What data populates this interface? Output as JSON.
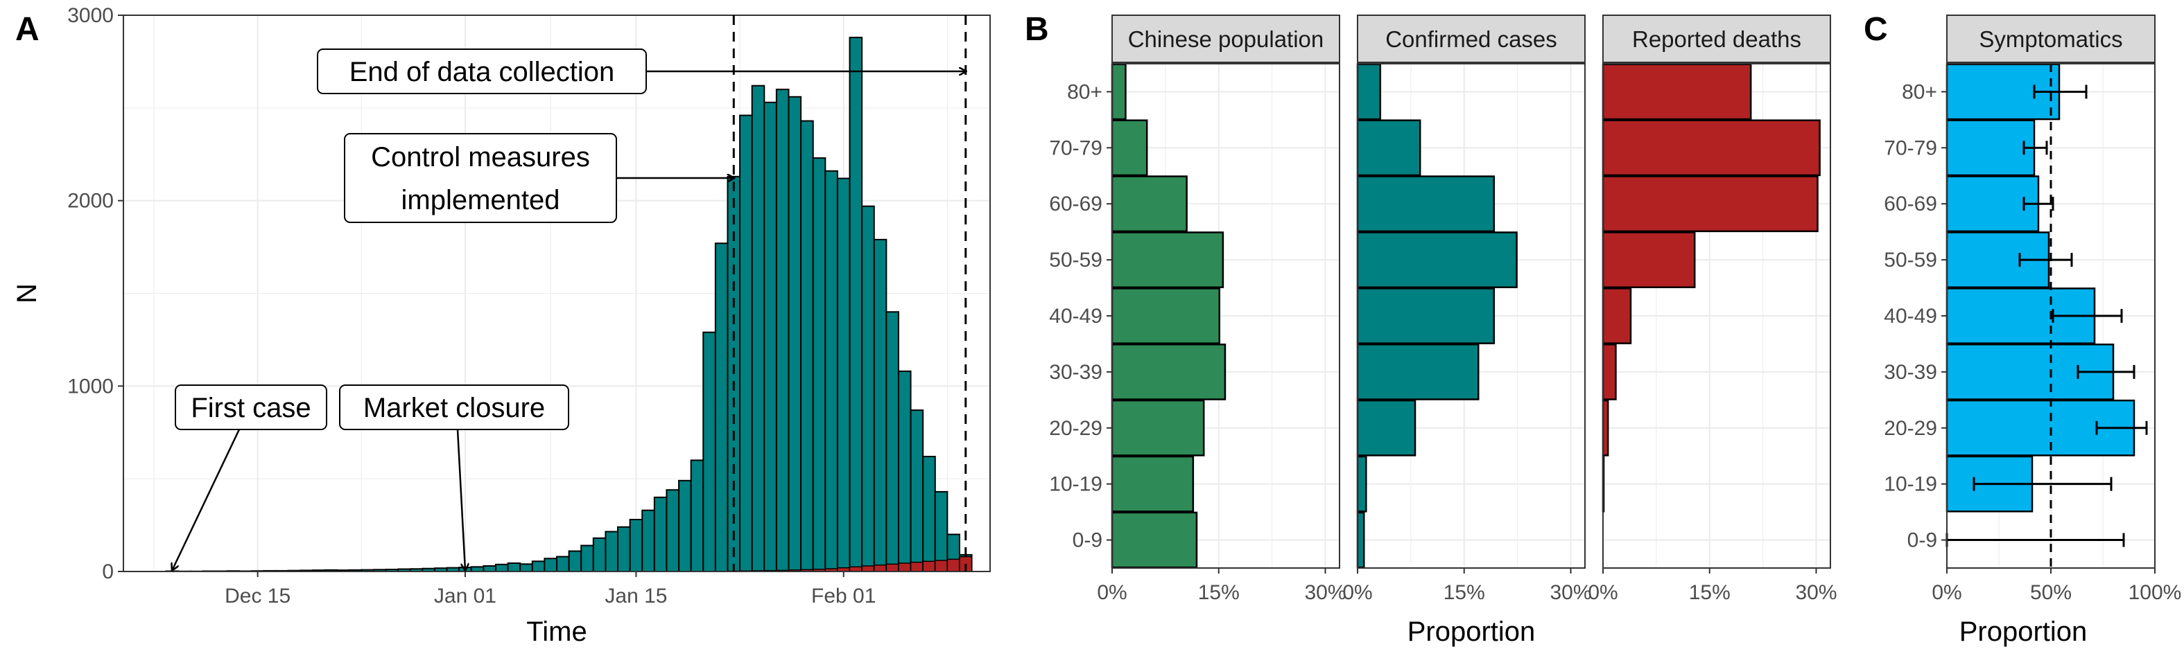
{
  "colors": {
    "cases": "#008080",
    "deaths": "#b22222",
    "population": "#2e8b57",
    "symptomatics": "#00b2ee",
    "grid": "#ebebeb",
    "strip": "#d9d9d9"
  },
  "panel_letters": [
    "A",
    "B",
    "C"
  ],
  "chart_data": [
    {
      "type": "bar",
      "panel": "A",
      "xlabel": "Time",
      "ylabel": "N",
      "ylim": [
        0,
        3000
      ],
      "yticks": [
        0,
        1000,
        2000,
        3000
      ],
      "xlim": [
        "2019-12-04",
        "2020-02-13"
      ],
      "xticks": [
        {
          "date": "2019-12-15",
          "label": "Dec 15"
        },
        {
          "date": "2020-01-01",
          "label": "Jan 01"
        },
        {
          "date": "2020-01-15",
          "label": "Jan 15"
        },
        {
          "date": "2020-02-01",
          "label": "Feb 01"
        }
      ],
      "grid": true,
      "x": [
        "2019-12-08",
        "2019-12-09",
        "2019-12-10",
        "2019-12-11",
        "2019-12-12",
        "2019-12-13",
        "2019-12-14",
        "2019-12-15",
        "2019-12-16",
        "2019-12-17",
        "2019-12-18",
        "2019-12-19",
        "2019-12-20",
        "2019-12-21",
        "2019-12-22",
        "2019-12-23",
        "2019-12-24",
        "2019-12-25",
        "2019-12-26",
        "2019-12-27",
        "2019-12-28",
        "2019-12-29",
        "2019-12-30",
        "2019-12-31",
        "2020-01-01",
        "2020-01-02",
        "2020-01-03",
        "2020-01-04",
        "2020-01-05",
        "2020-01-06",
        "2020-01-07",
        "2020-01-08",
        "2020-01-09",
        "2020-01-10",
        "2020-01-11",
        "2020-01-12",
        "2020-01-13",
        "2020-01-14",
        "2020-01-15",
        "2020-01-16",
        "2020-01-17",
        "2020-01-18",
        "2020-01-19",
        "2020-01-20",
        "2020-01-21",
        "2020-01-22",
        "2020-01-23",
        "2020-01-24",
        "2020-01-25",
        "2020-01-26",
        "2020-01-27",
        "2020-01-28",
        "2020-01-29",
        "2020-01-30",
        "2020-01-31",
        "2020-02-01",
        "2020-02-02",
        "2020-02-03",
        "2020-02-04",
        "2020-02-05",
        "2020-02-06",
        "2020-02-07",
        "2020-02-08",
        "2020-02-09",
        "2020-02-10",
        "2020-02-11"
      ],
      "series": [
        {
          "name": "Confirmed cases",
          "values": [
            2,
            1,
            1,
            2,
            2,
            3,
            2,
            3,
            4,
            4,
            5,
            6,
            7,
            8,
            7,
            8,
            9,
            10,
            11,
            13,
            14,
            16,
            18,
            20,
            22,
            25,
            30,
            38,
            45,
            40,
            55,
            70,
            80,
            110,
            140,
            180,
            215,
            240,
            280,
            330,
            400,
            440,
            490,
            600,
            1290,
            1770,
            2130,
            2460,
            2620,
            2530,
            2600,
            2560,
            2430,
            2230,
            2160,
            2120,
            2880,
            1970,
            1790,
            1400,
            1080,
            870,
            620,
            430,
            200,
            90
          ]
        },
        {
          "name": "Reported deaths",
          "values": [
            0,
            0,
            0,
            0,
            0,
            0,
            0,
            0,
            0,
            0,
            0,
            0,
            0,
            0,
            0,
            0,
            0,
            0,
            0,
            0,
            0,
            0,
            0,
            0,
            0,
            0,
            0,
            0,
            0,
            0,
            0,
            0,
            0,
            0,
            0,
            0,
            0,
            0,
            0,
            0,
            0,
            0,
            0,
            0,
            0,
            1,
            2,
            3,
            4,
            5,
            6,
            8,
            10,
            12,
            15,
            20,
            25,
            30,
            35,
            40,
            45,
            50,
            55,
            60,
            66,
            80
          ]
        }
      ],
      "annotations": [
        {
          "label": "First case",
          "lines": [
            "First case"
          ],
          "date": "2019-12-08"
        },
        {
          "label": "Market closure",
          "lines": [
            "Market closure"
          ],
          "date": "2020-01-01"
        },
        {
          "label": "Control measures implemented",
          "lines": [
            "Control measures",
            "implemented"
          ],
          "date": "2020-01-23"
        },
        {
          "label": "End of data collection",
          "lines": [
            "End of data collection"
          ],
          "date": "2020-02-11"
        }
      ]
    },
    {
      "type": "bar",
      "panel": "B",
      "orientation": "horizontal",
      "xlabel": "Proportion",
      "categories": [
        "0-9",
        "10-19",
        "20-29",
        "30-39",
        "40-49",
        "50-59",
        "60-69",
        "70-79",
        "80+"
      ],
      "xlim": [
        0,
        0.32
      ],
      "xticks": [
        {
          "value": 0,
          "label": "0%"
        },
        {
          "value": 0.15,
          "label": "15%"
        },
        {
          "value": 0.3,
          "label": "30%"
        }
      ],
      "grid": true,
      "facets": [
        {
          "name": "Chinese population",
          "color_key": "population",
          "values": [
            0.119,
            0.114,
            0.129,
            0.159,
            0.151,
            0.156,
            0.105,
            0.049,
            0.019
          ]
        },
        {
          "name": "Confirmed cases",
          "color_key": "cases",
          "values": [
            0.009,
            0.012,
            0.081,
            0.17,
            0.192,
            0.224,
            0.192,
            0.088,
            0.032
          ]
        },
        {
          "name": "Reported deaths",
          "color_key": "deaths",
          "values": [
            0.0,
            0.001,
            0.007,
            0.018,
            0.039,
            0.129,
            0.302,
            0.305,
            0.208
          ]
        }
      ]
    },
    {
      "type": "bar",
      "panel": "C",
      "orientation": "horizontal",
      "xlabel": "Proportion",
      "categories": [
        "0-9",
        "10-19",
        "20-29",
        "30-39",
        "40-49",
        "50-59",
        "60-69",
        "70-79",
        "80+"
      ],
      "xlim": [
        0,
        1.0
      ],
      "xticks": [
        {
          "value": 0,
          "label": "0%"
        },
        {
          "value": 0.5,
          "label": "50%"
        },
        {
          "value": 1.0,
          "label": "100%"
        }
      ],
      "grid": true,
      "facets": [
        {
          "name": "Symptomatics",
          "color_key": "symptomatics",
          "values": [
            0.0,
            0.41,
            0.9,
            0.8,
            0.71,
            0.49,
            0.44,
            0.42,
            0.54
          ],
          "lower": [
            0.0,
            0.13,
            0.72,
            0.63,
            0.51,
            0.35,
            0.37,
            0.37,
            0.42
          ],
          "upper": [
            0.85,
            0.79,
            0.96,
            0.9,
            0.84,
            0.6,
            0.51,
            0.48,
            0.67
          ],
          "reference_line": 0.5
        }
      ]
    }
  ]
}
